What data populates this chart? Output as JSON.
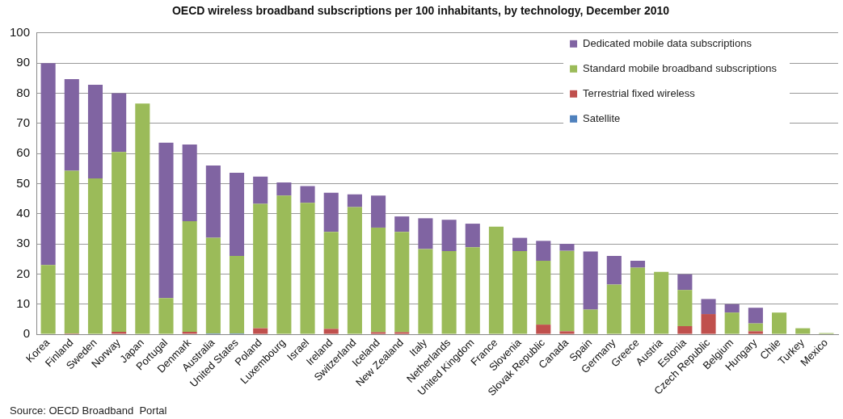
{
  "chart_data": {
    "type": "bar",
    "stacked": true,
    "title": "OECD wireless broadband subscriptions per 100 inhabitants, by technology, December 2010",
    "categories": [
      "Korea",
      "Finland",
      "Sweden",
      "Norway",
      "Japan",
      "Portugal",
      "Denmark",
      "Australia",
      "United States",
      "Poland",
      "Luxembourg",
      "Israel",
      "Ireland",
      "Switzerland",
      "Iceland",
      "New Zealand",
      "Italy",
      "Netherlands",
      "United Kingdom",
      "France",
      "Slovenia",
      "Slovak Republic",
      "Canada",
      "Spain",
      "Germany",
      "Greece",
      "Austria",
      "Estonia",
      "Czech Republic",
      "Belgium",
      "Hungary",
      "Chile",
      "Turkey",
      "Mexico"
    ],
    "series": [
      {
        "name": "Satellite",
        "color": "#4f81bd",
        "values": [
          0,
          0,
          0,
          0,
          0,
          0,
          0,
          0.3,
          0.3,
          0,
          0,
          0,
          0,
          0,
          0,
          0,
          0,
          0,
          0,
          0,
          0,
          0,
          0,
          0,
          0,
          0,
          0,
          0,
          0,
          0,
          0,
          0,
          0,
          0
        ]
      },
      {
        "name": "Terrestrial fixed wireless",
        "color": "#c0504d",
        "values": [
          0,
          0.3,
          0,
          0.8,
          0,
          0,
          0.8,
          0,
          0,
          2,
          0,
          0,
          1.8,
          0,
          0.7,
          0.7,
          0,
          0,
          0,
          0,
          0,
          3.2,
          1,
          0,
          0,
          0,
          0,
          2.7,
          6.7,
          0,
          1,
          0,
          0,
          0
        ]
      },
      {
        "name": "Standard mobile broadband subscriptions",
        "color": "#9bbb59",
        "values": [
          23,
          54,
          51.7,
          59.7,
          76.6,
          12,
          36.7,
          31.7,
          25.7,
          41.3,
          46,
          43.6,
          32.2,
          42.2,
          34.7,
          33.3,
          28.3,
          27.6,
          28.9,
          35.7,
          27.6,
          21.2,
          26.7,
          8.2,
          16.5,
          22.1,
          20.7,
          12,
          0,
          7.2,
          2.6,
          7.2,
          2,
          0.4
        ]
      },
      {
        "name": "Dedicated mobile data subscriptions",
        "color": "#8064a2",
        "values": [
          67,
          30.4,
          31.1,
          19.5,
          0,
          51.6,
          25.5,
          24,
          27.6,
          9,
          4.4,
          5.6,
          13,
          4.2,
          10.6,
          5.1,
          10.2,
          10.4,
          7.8,
          0,
          4.4,
          6.6,
          2.3,
          19.3,
          9.5,
          2.3,
          0,
          5.2,
          5,
          2.8,
          5.2,
          0,
          0,
          0
        ]
      }
    ],
    "ylim": [
      0,
      100
    ],
    "yticks": [
      0,
      10,
      20,
      30,
      40,
      50,
      60,
      70,
      80,
      90,
      100
    ],
    "grid": "y",
    "legend": "top right",
    "annotations": [
      "Source: OECD Broadband  Portal"
    ]
  }
}
